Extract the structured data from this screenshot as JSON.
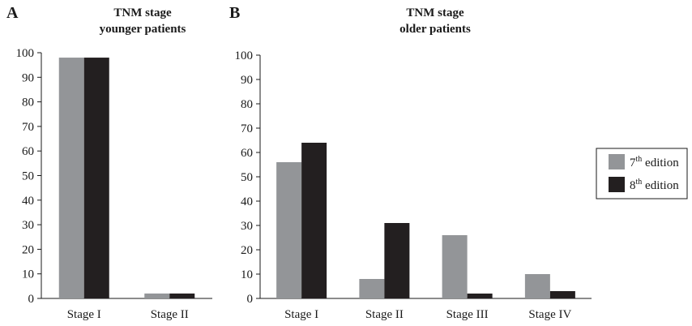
{
  "panels": [
    {
      "letter": "A",
      "title_line1": "TNM stage",
      "title_line2": "younger patients"
    },
    {
      "letter": "B",
      "title_line1": "TNM stage",
      "title_line2": "older patients"
    }
  ],
  "legend": {
    "items": [
      {
        "num": "7",
        "sup": "th",
        "rest": " edition",
        "color": "#939598"
      },
      {
        "num": "8",
        "sup": "th",
        "rest": " edition",
        "color": "#231f20"
      }
    ],
    "placement": "right"
  },
  "chart_data": [
    {
      "type": "bar",
      "title": "TNM stage younger patients",
      "categories": [
        "Stage I",
        "Stage II"
      ],
      "series": [
        {
          "name": "7th edition",
          "values": [
            98,
            2
          ],
          "color": "#939598"
        },
        {
          "name": "8th edition",
          "values": [
            98,
            2
          ],
          "color": "#231f20"
        }
      ],
      "ylim": [
        0,
        100
      ],
      "yticks": [
        0,
        10,
        20,
        30,
        40,
        50,
        60,
        70,
        80,
        90,
        100
      ],
      "grid": false
    },
    {
      "type": "bar",
      "title": "TNM stage older patients",
      "categories": [
        "Stage I",
        "Stage II",
        "Stage III",
        "Stage IV"
      ],
      "series": [
        {
          "name": "7th edition",
          "values": [
            56,
            8,
            26,
            10
          ],
          "color": "#939598"
        },
        {
          "name": "8th edition",
          "values": [
            64,
            31,
            2,
            3
          ],
          "color": "#231f20"
        }
      ],
      "ylim": [
        0,
        100
      ],
      "yticks": [
        0,
        10,
        20,
        30,
        40,
        50,
        60,
        70,
        80,
        90,
        100
      ],
      "grid": false
    }
  ]
}
